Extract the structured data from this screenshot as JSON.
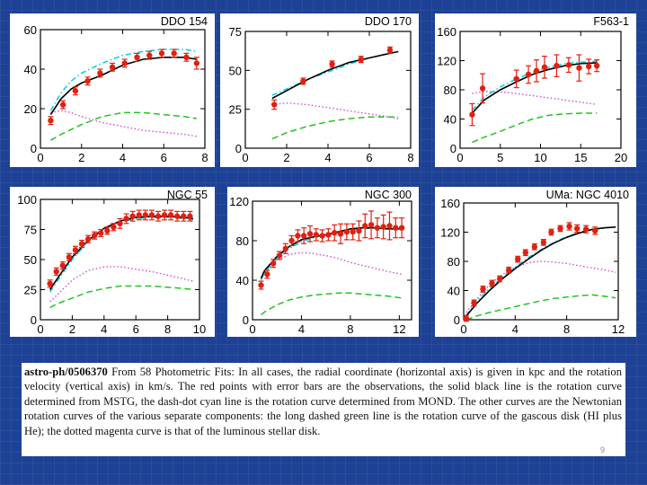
{
  "colors": {
    "background": "#1d4194",
    "mstg": "#000000",
    "mond": "#00d0e0",
    "gas": "#22c322",
    "stellar": "#d040d0",
    "points": "#e02010"
  },
  "chart_data": [
    {
      "type": "line",
      "title": "DDO 154",
      "xlim": [
        0,
        8
      ],
      "ylim": [
        0,
        60
      ],
      "xticks": [
        0,
        2,
        4,
        6,
        8
      ],
      "yticks": [
        0,
        20,
        40,
        60
      ],
      "observed": {
        "x": [
          0.5,
          1.1,
          1.7,
          2.3,
          2.9,
          3.5,
          4.1,
          4.7,
          5.3,
          5.9,
          6.5,
          7.1,
          7.6
        ],
        "y": [
          14,
          22,
          29,
          34,
          38,
          41,
          43,
          46,
          47,
          48,
          48,
          46,
          43
        ],
        "err": [
          2,
          2,
          2,
          2,
          2,
          2,
          2,
          2,
          2,
          2,
          2,
          2,
          3
        ]
      },
      "mstg": {
        "x": [
          0.5,
          1,
          1.5,
          2,
          3,
          4,
          5,
          6,
          7,
          7.6
        ],
        "y": [
          17,
          25,
          30,
          33,
          37,
          42,
          45,
          46,
          46,
          45
        ]
      },
      "mond": {
        "x": [
          0.5,
          1,
          1.5,
          2,
          3,
          4,
          5,
          6,
          7,
          7.6
        ],
        "y": [
          19,
          28,
          34,
          38,
          43,
          47,
          49,
          50,
          50,
          49
        ]
      },
      "gas": {
        "x": [
          0.5,
          1,
          2,
          3,
          4,
          5,
          6,
          7,
          7.6
        ],
        "y": [
          4,
          7,
          12,
          16,
          18,
          18,
          17,
          16,
          15
        ]
      },
      "stellar": {
        "x": [
          0.5,
          1,
          1.5,
          2,
          3,
          4,
          5,
          6,
          7,
          7.6
        ],
        "y": [
          18,
          19,
          18,
          16,
          13,
          11,
          9,
          8,
          7,
          6
        ]
      }
    },
    {
      "type": "line",
      "title": "DDO 170",
      "xlim": [
        0,
        8
      ],
      "ylim": [
        0,
        75
      ],
      "xticks": [
        0,
        2,
        4,
        6,
        8
      ],
      "yticks": [
        0,
        25,
        50,
        75
      ],
      "observed": {
        "x": [
          1.4,
          2.8,
          4.2,
          5.6,
          7.0
        ],
        "y": [
          28,
          43,
          54,
          57,
          63
        ],
        "err": [
          3,
          2,
          2,
          2,
          2
        ]
      },
      "mstg": {
        "x": [
          1.3,
          2,
          3,
          4,
          5,
          6,
          7,
          7.4
        ],
        "y": [
          32,
          37,
          44,
          50,
          55,
          58,
          61,
          62
        ]
      },
      "mond": {
        "x": [
          1.3,
          2,
          3,
          4,
          5,
          6,
          7,
          7.4
        ],
        "y": [
          34,
          38,
          44,
          49,
          54,
          58,
          61,
          62
        ]
      },
      "gas": {
        "x": [
          1.3,
          2,
          3,
          4,
          5,
          6,
          7,
          7.4
        ],
        "y": [
          6,
          10,
          14,
          17,
          19,
          20,
          20,
          20
        ]
      },
      "stellar": {
        "x": [
          1.3,
          2,
          3,
          4,
          5,
          6,
          7,
          7.4
        ],
        "y": [
          28,
          29,
          28,
          26,
          24,
          22,
          20,
          19
        ]
      }
    },
    {
      "type": "line",
      "title": "F563-1",
      "xlim": [
        0,
        20
      ],
      "ylim": [
        0,
        160
      ],
      "xticks": [
        0,
        5,
        10,
        15,
        20
      ],
      "yticks": [
        0,
        40,
        80,
        120,
        160
      ],
      "observed": {
        "x": [
          1.5,
          2.8,
          7,
          8.5,
          9.5,
          10.5,
          12,
          13.5,
          14.8,
          16,
          17
        ],
        "y": [
          46,
          82,
          95,
          101,
          106,
          111,
          113,
          114,
          110,
          112,
          113
        ],
        "err": [
          15,
          20,
          12,
          12,
          15,
          15,
          15,
          10,
          18,
          10,
          8
        ]
      },
      "mstg": {
        "x": [
          1.5,
          3,
          5,
          7,
          9,
          11,
          13,
          15,
          17
        ],
        "y": [
          48,
          66,
          80,
          91,
          101,
          108,
          113,
          116,
          117
        ]
      },
      "mond": {
        "x": [
          1.5,
          3,
          5,
          7,
          9,
          11,
          13,
          15,
          17
        ],
        "y": [
          52,
          70,
          84,
          95,
          104,
          111,
          116,
          118,
          119
        ]
      },
      "gas": {
        "x": [
          1.5,
          3,
          5,
          7,
          9,
          11,
          13,
          15,
          17
        ],
        "y": [
          8,
          15,
          23,
          32,
          40,
          45,
          47,
          48,
          48
        ]
      },
      "stellar": {
        "x": [
          1.5,
          3,
          5,
          7,
          9,
          11,
          13,
          15,
          17
        ],
        "y": [
          75,
          78,
          77,
          75,
          72,
          69,
          66,
          63,
          60
        ]
      }
    },
    {
      "type": "line",
      "title": "NGC 55",
      "xlim": [
        0,
        10
      ],
      "ylim": [
        0,
        100
      ],
      "xticks": [
        0,
        2,
        4,
        6,
        8,
        10
      ],
      "yticks": [
        0,
        25,
        50,
        75,
        100
      ],
      "observed": {
        "x": [
          0.6,
          1,
          1.4,
          1.8,
          2.2,
          2.6,
          3.0,
          3.4,
          3.8,
          4.2,
          4.6,
          5.0,
          5.4,
          5.8,
          6.2,
          6.6,
          7.0,
          7.4,
          7.8,
          8.2,
          8.6,
          9.0,
          9.4
        ],
        "y": [
          30,
          40,
          45,
          52,
          58,
          63,
          67,
          70,
          72,
          74,
          77,
          80,
          84,
          86,
          87,
          87,
          87,
          86,
          87,
          87,
          86,
          86,
          86
        ],
        "err": [
          3,
          3,
          3,
          3,
          3,
          3,
          3,
          3,
          3,
          3,
          3,
          4,
          4,
          4,
          4,
          4,
          4,
          4,
          4,
          4,
          4,
          4,
          4
        ]
      },
      "mstg": {
        "x": [
          0.6,
          1,
          2,
          3,
          4,
          5,
          6,
          7,
          8,
          9,
          9.6
        ],
        "y": [
          25,
          33,
          52,
          66,
          76,
          82,
          85,
          86,
          86,
          85,
          84
        ]
      },
      "mond": {
        "x": [
          0.6,
          1,
          2,
          3,
          4,
          5,
          6,
          7,
          8,
          9,
          9.6
        ],
        "y": [
          23,
          31,
          50,
          65,
          75,
          81,
          84,
          85,
          85,
          84,
          83
        ]
      },
      "gas": {
        "x": [
          0.6,
          1,
          2,
          3,
          4,
          5,
          6,
          7,
          8,
          9,
          9.6
        ],
        "y": [
          10,
          13,
          18,
          23,
          26,
          28,
          28,
          28,
          27,
          26,
          25
        ]
      },
      "stellar": {
        "x": [
          0.6,
          1,
          2,
          3,
          4,
          5,
          6,
          7,
          8,
          9,
          9.6
        ],
        "y": [
          15,
          20,
          33,
          41,
          44,
          44,
          42,
          40,
          37,
          34,
          32
        ]
      }
    },
    {
      "type": "line",
      "title": "NGC 300",
      "xlim": [
        0,
        13
      ],
      "ylim": [
        0,
        120
      ],
      "xticks": [
        0,
        4,
        8,
        12
      ],
      "yticks": [
        0,
        40,
        80,
        120
      ],
      "observed": {
        "x": [
          0.7,
          1.2,
          1.7,
          2.2,
          2.7,
          3.2,
          3.7,
          4.2,
          4.7,
          5.2,
          5.7,
          6.2,
          6.7,
          7.2,
          7.7,
          8.2,
          8.7,
          9.2,
          9.7,
          10.2,
          10.7,
          11.2,
          11.7,
          12.2
        ],
        "y": [
          35,
          46,
          57,
          65,
          72,
          80,
          85,
          85,
          87,
          86,
          85,
          86,
          88,
          87,
          89,
          89,
          90,
          95,
          96,
          93,
          94,
          95,
          93,
          93
        ],
        "err": [
          4,
          4,
          4,
          4,
          5,
          5,
          6,
          8,
          8,
          6,
          6,
          6,
          8,
          10,
          8,
          8,
          10,
          12,
          14,
          10,
          12,
          14,
          10,
          10
        ]
      },
      "mstg": {
        "x": [
          0.7,
          1,
          2,
          3,
          4,
          5,
          6,
          7,
          8,
          9,
          10,
          11,
          12.2
        ],
        "y": [
          42,
          50,
          64,
          74,
          81,
          84,
          86,
          89,
          92,
          93,
          93,
          92,
          92
        ]
      },
      "mond": {
        "x": [
          0.7,
          1,
          2,
          3,
          4,
          5,
          6,
          7,
          8,
          9,
          10,
          11,
          12.2
        ],
        "y": [
          40,
          48,
          62,
          72,
          79,
          83,
          86,
          88,
          91,
          92,
          93,
          92,
          92
        ]
      },
      "gas": {
        "x": [
          0.7,
          1,
          2,
          3,
          4,
          5,
          6,
          7,
          8,
          9,
          10,
          11,
          12.2
        ],
        "y": [
          5,
          8,
          15,
          20,
          23,
          25,
          26,
          27,
          27,
          26,
          25,
          24,
          22
        ]
      },
      "stellar": {
        "x": [
          0.7,
          1,
          2,
          3,
          4,
          5,
          6,
          7,
          8,
          9,
          10,
          11,
          12.2
        ],
        "y": [
          42,
          48,
          60,
          66,
          68,
          67,
          65,
          62,
          58,
          55,
          52,
          49,
          46
        ]
      }
    },
    {
      "type": "line",
      "title": "UMa: NGC 4010",
      "xlim": [
        0,
        12
      ],
      "ylim": [
        0,
        160
      ],
      "xticks": [
        0,
        4,
        8,
        12
      ],
      "yticks": [
        0,
        40,
        80,
        120,
        160
      ],
      "observed": {
        "x": [
          0.2,
          0.8,
          1.5,
          2.2,
          2.8,
          3.5,
          4.2,
          4.8,
          5.5,
          6.2,
          6.8,
          7.5,
          8.2,
          8.8,
          9.5,
          10.2
        ],
        "y": [
          2,
          23,
          42,
          50,
          56,
          68,
          83,
          92,
          100,
          106,
          120,
          125,
          128,
          125,
          124,
          122
        ],
        "err": [
          4,
          4,
          4,
          4,
          4,
          4,
          4,
          4,
          4,
          4,
          4,
          4,
          5,
          5,
          5,
          5
        ]
      },
      "mstg": {
        "x": [
          0.2,
          1,
          2,
          3,
          4,
          5,
          6,
          7,
          8,
          9,
          10,
          11,
          11.8
        ],
        "y": [
          5,
          22,
          40,
          56,
          70,
          83,
          95,
          105,
          113,
          119,
          124,
          126,
          127
        ]
      },
      "mond": {
        "x": [
          0.2,
          1,
          2,
          3,
          4,
          5,
          6,
          7,
          8,
          9,
          10,
          11,
          11.8
        ],
        "y": [
          6,
          25,
          43,
          58,
          72,
          85,
          96,
          106,
          114,
          120,
          124,
          126,
          127
        ]
      },
      "gas": {
        "x": [
          0.2,
          1,
          2,
          3,
          4,
          5,
          6,
          7,
          8,
          9,
          10,
          11,
          11.8
        ],
        "y": [
          0,
          5,
          10,
          14,
          18,
          22,
          26,
          29,
          31,
          33,
          34,
          32,
          30
        ]
      },
      "stellar": {
        "x": [
          0.2,
          1,
          2,
          3,
          4,
          5,
          6,
          7,
          8,
          9,
          10,
          11,
          11.8
        ],
        "y": [
          10,
          28,
          48,
          62,
          72,
          78,
          80,
          79,
          77,
          74,
          71,
          68,
          65
        ]
      }
    }
  ],
  "caption": {
    "cite": "astro-ph/0506370",
    "text": "From 58 Photometric Fits: In all cases, the radial coordinate (horizontal axis) is given in kpc and the rotation velocity (vertical axis) in km/s. The red points with error bars are the observations, the solid black line is the rotation curve determined from MSTG, the dash-dot cyan line is the rotation curve determined from MOND. The other curves are the Newtonian rotation curves of the various separate components: the long dashed green line is the rotation curve of the gascous disk (HI plus He); the dotted magenta curve is that of the luminous stellar disk."
  },
  "page_number": "9"
}
